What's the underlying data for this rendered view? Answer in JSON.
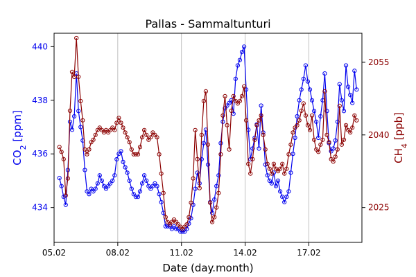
{
  "chart_data": {
    "type": "line",
    "title": "Pallas - Sammaltunturi",
    "xlabel": "Date (day.month)",
    "x_ticks": [
      {
        "day": 5,
        "label": "05.02"
      },
      {
        "day": 8,
        "label": "08.02"
      },
      {
        "day": 11,
        "label": "11.02"
      },
      {
        "day": 14,
        "label": "14.02"
      },
      {
        "day": 17,
        "label": "17.02"
      }
    ],
    "xlim": [
      5.0,
      19.5
    ],
    "series": [
      {
        "name": "CO2",
        "ylabel": "CO2 [ppm]",
        "axis": "left",
        "color": "#0000ee",
        "ylim": [
          432.7,
          440.5
        ],
        "y_ticks": [
          434,
          436,
          438,
          440
        ],
        "points": [
          [
            5.25,
            435.1
          ],
          [
            5.35,
            434.8
          ],
          [
            5.45,
            434.4
          ],
          [
            5.55,
            434.1
          ],
          [
            5.65,
            435.4
          ],
          [
            5.75,
            437.2
          ],
          [
            5.85,
            436.9
          ],
          [
            5.95,
            437.4
          ],
          [
            6.05,
            439.0
          ],
          [
            6.15,
            437.6
          ],
          [
            6.25,
            437.0
          ],
          [
            6.35,
            436.5
          ],
          [
            6.45,
            435.4
          ],
          [
            6.55,
            434.6
          ],
          [
            6.65,
            434.5
          ],
          [
            6.75,
            434.7
          ],
          [
            6.85,
            434.6
          ],
          [
            6.95,
            434.7
          ],
          [
            7.05,
            434.9
          ],
          [
            7.15,
            435.2
          ],
          [
            7.25,
            435.0
          ],
          [
            7.35,
            434.8
          ],
          [
            7.45,
            434.7
          ],
          [
            7.55,
            434.8
          ],
          [
            7.65,
            434.9
          ],
          [
            7.75,
            435.0
          ],
          [
            7.85,
            435.2
          ],
          [
            7.95,
            435.8
          ],
          [
            8.05,
            436.0
          ],
          [
            8.15,
            436.1
          ],
          [
            8.25,
            435.7
          ],
          [
            8.35,
            435.5
          ],
          [
            8.45,
            435.3
          ],
          [
            8.55,
            435.0
          ],
          [
            8.65,
            434.7
          ],
          [
            8.75,
            434.5
          ],
          [
            8.85,
            434.4
          ],
          [
            8.95,
            434.4
          ],
          [
            9.05,
            434.6
          ],
          [
            9.15,
            434.9
          ],
          [
            9.25,
            435.2
          ],
          [
            9.35,
            435.0
          ],
          [
            9.45,
            434.8
          ],
          [
            9.55,
            434.7
          ],
          [
            9.65,
            434.8
          ],
          [
            9.75,
            434.9
          ],
          [
            9.85,
            434.8
          ],
          [
            9.95,
            434.5
          ],
          [
            10.05,
            434.2
          ],
          [
            10.15,
            433.8
          ],
          [
            10.25,
            433.3
          ],
          [
            10.35,
            433.3
          ],
          [
            10.45,
            433.3
          ],
          [
            10.55,
            433.2
          ],
          [
            10.65,
            433.3
          ],
          [
            10.75,
            433.2
          ],
          [
            10.85,
            433.2
          ],
          [
            10.95,
            433.1
          ],
          [
            11.05,
            433.1
          ],
          [
            11.15,
            433.1
          ],
          [
            11.25,
            433.2
          ],
          [
            11.35,
            433.4
          ],
          [
            11.45,
            433.6
          ],
          [
            11.55,
            434.1
          ],
          [
            11.65,
            434.7
          ],
          [
            11.75,
            435.3
          ],
          [
            11.85,
            434.9
          ],
          [
            11.95,
            435.8
          ],
          [
            12.05,
            436.4
          ],
          [
            12.15,
            436.9
          ],
          [
            12.25,
            435.6
          ],
          [
            12.35,
            434.2
          ],
          [
            12.45,
            433.8
          ],
          [
            12.55,
            434.3
          ],
          [
            12.65,
            434.8
          ],
          [
            12.75,
            435.2
          ],
          [
            12.85,
            436.4
          ],
          [
            12.95,
            437.2
          ],
          [
            13.05,
            437.7
          ],
          [
            13.15,
            437.8
          ],
          [
            13.25,
            437.9
          ],
          [
            13.35,
            438.0
          ],
          [
            13.45,
            437.5
          ],
          [
            13.55,
            438.8
          ],
          [
            13.65,
            439.3
          ],
          [
            13.75,
            439.5
          ],
          [
            13.85,
            439.8
          ],
          [
            13.95,
            440.0
          ],
          [
            14.05,
            438.4
          ],
          [
            14.15,
            436.9
          ],
          [
            14.25,
            435.8
          ],
          [
            14.35,
            436.2
          ],
          [
            14.45,
            436.6
          ],
          [
            14.55,
            437.1
          ],
          [
            14.65,
            436.2
          ],
          [
            14.75,
            437.8
          ],
          [
            14.85,
            436.8
          ],
          [
            14.95,
            435.6
          ],
          [
            15.05,
            435.2
          ],
          [
            15.15,
            435.0
          ],
          [
            15.25,
            434.9
          ],
          [
            15.35,
            435.3
          ],
          [
            15.45,
            434.8
          ],
          [
            15.55,
            435.0
          ],
          [
            15.65,
            434.6
          ],
          [
            15.75,
            434.4
          ],
          [
            15.85,
            434.2
          ],
          [
            15.95,
            434.4
          ],
          [
            16.05,
            434.6
          ],
          [
            16.15,
            435.3
          ],
          [
            16.25,
            436.0
          ],
          [
            16.35,
            436.6
          ],
          [
            16.45,
            437.4
          ],
          [
            16.55,
            438.0
          ],
          [
            16.65,
            438.4
          ],
          [
            16.75,
            438.8
          ],
          [
            16.85,
            439.3
          ],
          [
            16.95,
            438.7
          ],
          [
            17.05,
            438.4
          ],
          [
            17.15,
            438.0
          ],
          [
            17.25,
            437.6
          ],
          [
            17.35,
            437.2
          ],
          [
            17.45,
            436.6
          ],
          [
            17.55,
            437.4
          ],
          [
            17.65,
            438.0
          ],
          [
            17.75,
            439.0
          ],
          [
            17.85,
            437.6
          ],
          [
            17.95,
            436.4
          ],
          [
            18.05,
            436.1
          ],
          [
            18.15,
            436.2
          ],
          [
            18.25,
            436.5
          ],
          [
            18.35,
            437.2
          ],
          [
            18.45,
            438.6
          ],
          [
            18.55,
            438.0
          ],
          [
            18.65,
            437.6
          ],
          [
            18.75,
            439.3
          ],
          [
            18.85,
            438.5
          ],
          [
            18.95,
            438.2
          ],
          [
            19.05,
            437.9
          ],
          [
            19.15,
            439.1
          ],
          [
            19.25,
            438.4
          ]
        ]
      },
      {
        "name": "CH4",
        "ylabel": "CH4 [ppb]",
        "axis": "right",
        "color": "#8b0000",
        "ylim": [
          2017.8,
          2061.0
        ],
        "y_ticks": [
          2025,
          2040,
          2055
        ],
        "points": [
          [
            5.25,
            2037.5
          ],
          [
            5.35,
            2036.5
          ],
          [
            5.45,
            2035.0
          ],
          [
            5.55,
            2027.5
          ],
          [
            5.65,
            2031.0
          ],
          [
            5.75,
            2045.0
          ],
          [
            5.85,
            2053.0
          ],
          [
            5.95,
            2052.0
          ],
          [
            6.05,
            2060.0
          ],
          [
            6.15,
            2052.0
          ],
          [
            6.25,
            2047.0
          ],
          [
            6.35,
            2043.0
          ],
          [
            6.45,
            2037.0
          ],
          [
            6.55,
            2036.0
          ],
          [
            6.65,
            2037.0
          ],
          [
            6.75,
            2038.5
          ],
          [
            6.85,
            2039.0
          ],
          [
            6.95,
            2040.0
          ],
          [
            7.05,
            2041.0
          ],
          [
            7.15,
            2041.5
          ],
          [
            7.25,
            2041.0
          ],
          [
            7.35,
            2040.5
          ],
          [
            7.45,
            2041.0
          ],
          [
            7.55,
            2040.5
          ],
          [
            7.65,
            2041.0
          ],
          [
            7.75,
            2041.5
          ],
          [
            7.85,
            2041.0
          ],
          [
            7.95,
            2042.5
          ],
          [
            8.05,
            2043.5
          ],
          [
            8.15,
            2042.5
          ],
          [
            8.25,
            2041.5
          ],
          [
            8.35,
            2040.5
          ],
          [
            8.45,
            2039.5
          ],
          [
            8.55,
            2038.5
          ],
          [
            8.65,
            2037.0
          ],
          [
            8.75,
            2036.0
          ],
          [
            8.85,
            2036.0
          ],
          [
            8.95,
            2036.0
          ],
          [
            9.05,
            2037.5
          ],
          [
            9.15,
            2039.5
          ],
          [
            9.25,
            2041.0
          ],
          [
            9.35,
            2040.0
          ],
          [
            9.45,
            2039.0
          ],
          [
            9.55,
            2039.5
          ],
          [
            9.65,
            2040.5
          ],
          [
            9.75,
            2040.0
          ],
          [
            9.85,
            2039.5
          ],
          [
            9.95,
            2036.0
          ],
          [
            10.05,
            2032.0
          ],
          [
            10.15,
            2028.0
          ],
          [
            10.25,
            2023.0
          ],
          [
            10.35,
            2022.0
          ],
          [
            10.45,
            2021.5
          ],
          [
            10.55,
            2022.0
          ],
          [
            10.65,
            2022.5
          ],
          [
            10.75,
            2022.0
          ],
          [
            10.85,
            2021.5
          ],
          [
            10.95,
            2021.0
          ],
          [
            11.05,
            2020.5
          ],
          [
            11.15,
            2021.0
          ],
          [
            11.25,
            2021.5
          ],
          [
            11.35,
            2023.0
          ],
          [
            11.45,
            2026.0
          ],
          [
            11.55,
            2031.0
          ],
          [
            11.65,
            2041.0
          ],
          [
            11.75,
            2035.0
          ],
          [
            11.85,
            2029.0
          ],
          [
            11.95,
            2040.0
          ],
          [
            12.05,
            2047.0
          ],
          [
            12.15,
            2049.0
          ],
          [
            12.25,
            2038.0
          ],
          [
            12.35,
            2026.0
          ],
          [
            12.45,
            2022.0
          ],
          [
            12.55,
            2023.0
          ],
          [
            12.65,
            2025.0
          ],
          [
            12.75,
            2028.0
          ],
          [
            12.85,
            2036.0
          ],
          [
            12.95,
            2044.0
          ],
          [
            13.05,
            2048.0
          ],
          [
            13.15,
            2042.0
          ],
          [
            13.25,
            2037.0
          ],
          [
            13.35,
            2045.0
          ],
          [
            13.45,
            2048.0
          ],
          [
            13.55,
            2047.0
          ],
          [
            13.65,
            2046.5
          ],
          [
            13.75,
            2047.0
          ],
          [
            13.85,
            2048.0
          ],
          [
            13.95,
            2050.0
          ],
          [
            14.05,
            2043.0
          ],
          [
            14.15,
            2034.0
          ],
          [
            14.25,
            2032.0
          ],
          [
            14.35,
            2035.0
          ],
          [
            14.45,
            2039.0
          ],
          [
            14.55,
            2042.0
          ],
          [
            14.65,
            2043.0
          ],
          [
            14.75,
            2044.0
          ],
          [
            14.85,
            2040.0
          ],
          [
            14.95,
            2037.0
          ],
          [
            15.05,
            2034.0
          ],
          [
            15.15,
            2033.0
          ],
          [
            15.25,
            2032.0
          ],
          [
            15.35,
            2034.0
          ],
          [
            15.45,
            2033.0
          ],
          [
            15.55,
            2032.5
          ],
          [
            15.65,
            2033.0
          ],
          [
            15.75,
            2034.0
          ],
          [
            15.85,
            2032.0
          ],
          [
            15.95,
            2033.0
          ],
          [
            16.05,
            2036.0
          ],
          [
            16.15,
            2038.0
          ],
          [
            16.25,
            2040.5
          ],
          [
            16.35,
            2041.5
          ],
          [
            16.45,
            2042.0
          ],
          [
            16.55,
            2043.0
          ],
          [
            16.65,
            2045.0
          ],
          [
            16.75,
            2046.5
          ],
          [
            16.85,
            2044.0
          ],
          [
            16.95,
            2042.0
          ],
          [
            17.05,
            2041.0
          ],
          [
            17.15,
            2044.0
          ],
          [
            17.25,
            2039.0
          ],
          [
            17.35,
            2037.0
          ],
          [
            17.45,
            2036.5
          ],
          [
            17.55,
            2038.0
          ],
          [
            17.65,
            2039.0
          ],
          [
            17.75,
            2049.0
          ],
          [
            17.85,
            2040.0
          ],
          [
            17.95,
            2038.5
          ],
          [
            18.05,
            2035.0
          ],
          [
            18.15,
            2034.5
          ],
          [
            18.25,
            2035.5
          ],
          [
            18.35,
            2037.0
          ],
          [
            18.45,
            2046.0
          ],
          [
            18.55,
            2038.0
          ],
          [
            18.65,
            2039.0
          ],
          [
            18.75,
            2042.0
          ],
          [
            18.85,
            2041.0
          ],
          [
            18.95,
            2040.5
          ],
          [
            19.05,
            2041.5
          ],
          [
            19.15,
            2044.0
          ],
          [
            19.25,
            2043.0
          ]
        ]
      }
    ]
  }
}
